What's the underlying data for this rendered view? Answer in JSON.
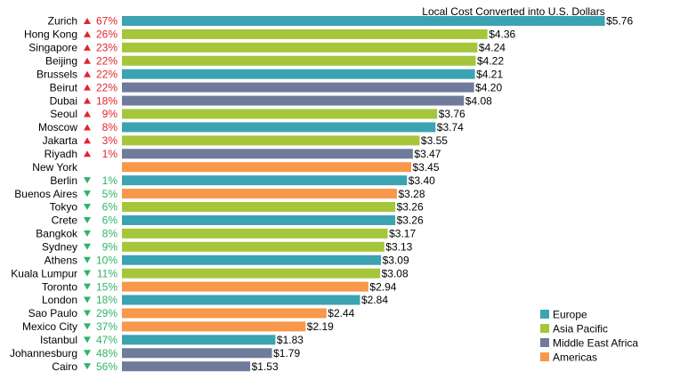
{
  "chart_data": {
    "type": "bar",
    "orientation": "horizontal",
    "title": "Local Cost Converted into U.S. Dollars",
    "colors": {
      "Europe": "#3BA3B2",
      "Asia Pacific": "#A5C63B",
      "Middle East Africa": "#6F7B9B",
      "Americas": "#F7984A",
      "up": "#E3242B",
      "down": "#2FB36A"
    },
    "legend": {
      "placement": "bottom-right",
      "entries": [
        "Europe",
        "Asia Pacific",
        "Middle East Africa",
        "Americas"
      ]
    },
    "rows": [
      {
        "city": "Zurich",
        "dir": "up",
        "change": "67%",
        "value": 5.76,
        "label": "$5.76",
        "region": "Europe"
      },
      {
        "city": "Hong Kong",
        "dir": "up",
        "change": "26%",
        "value": 4.36,
        "label": "$4.36",
        "region": "Asia Pacific"
      },
      {
        "city": "Singapore",
        "dir": "up",
        "change": "23%",
        "value": 4.24,
        "label": "$4.24",
        "region": "Asia Pacific"
      },
      {
        "city": "Beijing",
        "dir": "up",
        "change": "22%",
        "value": 4.22,
        "label": "$4.22",
        "region": "Asia Pacific"
      },
      {
        "city": "Brussels",
        "dir": "up",
        "change": "22%",
        "value": 4.21,
        "label": "$4.21",
        "region": "Europe"
      },
      {
        "city": "Beirut",
        "dir": "up",
        "change": "22%",
        "value": 4.2,
        "label": "$4.20",
        "region": "Middle East Africa"
      },
      {
        "city": "Dubai",
        "dir": "up",
        "change": "18%",
        "value": 4.08,
        "label": "$4.08",
        "region": "Middle East Africa"
      },
      {
        "city": "Seoul",
        "dir": "up",
        "change": "9%",
        "value": 3.76,
        "label": "$3.76",
        "region": "Asia Pacific"
      },
      {
        "city": "Moscow",
        "dir": "up",
        "change": "8%",
        "value": 3.74,
        "label": "$3.74",
        "region": "Europe"
      },
      {
        "city": "Jakarta",
        "dir": "up",
        "change": "3%",
        "value": 3.55,
        "label": "$3.55",
        "region": "Asia Pacific"
      },
      {
        "city": "Riyadh",
        "dir": "up",
        "change": "1%",
        "value": 3.47,
        "label": "$3.47",
        "region": "Middle East Africa"
      },
      {
        "city": "New York",
        "dir": "",
        "change": "",
        "value": 3.45,
        "label": "$3.45",
        "region": "Americas"
      },
      {
        "city": "Berlin",
        "dir": "down",
        "change": "1%",
        "value": 3.4,
        "label": "$3.40",
        "region": "Europe"
      },
      {
        "city": "Buenos Aires",
        "dir": "down",
        "change": "5%",
        "value": 3.28,
        "label": "$3.28",
        "region": "Americas"
      },
      {
        "city": "Tokyo",
        "dir": "down",
        "change": "6%",
        "value": 3.26,
        "label": "$3.26",
        "region": "Asia Pacific"
      },
      {
        "city": "Crete",
        "dir": "down",
        "change": "6%",
        "value": 3.26,
        "label": "$3.26",
        "region": "Europe"
      },
      {
        "city": "Bangkok",
        "dir": "down",
        "change": "8%",
        "value": 3.17,
        "label": "$3.17",
        "region": "Asia Pacific"
      },
      {
        "city": "Sydney",
        "dir": "down",
        "change": "9%",
        "value": 3.13,
        "label": "$3.13",
        "region": "Asia Pacific"
      },
      {
        "city": "Athens",
        "dir": "down",
        "change": "10%",
        "value": 3.09,
        "label": "$3.09",
        "region": "Europe"
      },
      {
        "city": "Kuala Lumpur",
        "dir": "down",
        "change": "11%",
        "value": 3.08,
        "label": "$3.08",
        "region": "Asia Pacific"
      },
      {
        "city": "Toronto",
        "dir": "down",
        "change": "15%",
        "value": 2.94,
        "label": "$2.94",
        "region": "Americas"
      },
      {
        "city": "London",
        "dir": "down",
        "change": "18%",
        "value": 2.84,
        "label": "$2.84",
        "region": "Europe"
      },
      {
        "city": "Sao Paulo",
        "dir": "down",
        "change": "29%",
        "value": 2.44,
        "label": "$2.44",
        "region": "Americas"
      },
      {
        "city": "Mexico City",
        "dir": "down",
        "change": "37%",
        "value": 2.19,
        "label": "$2.19",
        "region": "Americas"
      },
      {
        "city": "Istanbul",
        "dir": "down",
        "change": "47%",
        "value": 1.83,
        "label": "$1.83",
        "region": "Europe"
      },
      {
        "city": "Johannesburg",
        "dir": "down",
        "change": "48%",
        "value": 1.79,
        "label": "$1.79",
        "region": "Middle East Africa"
      },
      {
        "city": "Cairo",
        "dir": "down",
        "change": "56%",
        "value": 1.53,
        "label": "$1.53",
        "region": "Middle East Africa"
      }
    ]
  }
}
